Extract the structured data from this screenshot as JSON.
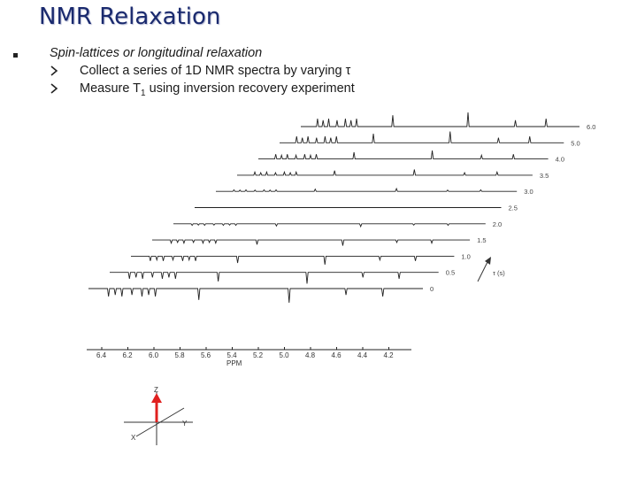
{
  "slide": {
    "title": "NMR Relaxation",
    "bullet": "Spin-lattices or longitudinal relaxation",
    "sub1": "Collect a series of 1D NMR spectra by varying τ",
    "sub2_prefix": "Measure T",
    "sub2_subscript": "1",
    "sub2_suffix": " using inversion recovery experiment"
  },
  "spectra": {
    "tau_values": [
      "6.0",
      "5.0",
      "4.0",
      "3.5",
      "3.0",
      "2.5",
      "2.0",
      "1.5",
      "1.0",
      "0.5",
      "0"
    ],
    "tau_axis_label": "τ (s)",
    "ppm_ticks": [
      "6.4",
      "6.2",
      "6.0",
      "5.8",
      "5.6",
      "5.4",
      "5.2",
      "5.0",
      "4.8",
      "4.6",
      "4.4",
      "4.2"
    ],
    "ppm_label": "PPM"
  },
  "axes3d": {
    "z": "Z",
    "y": "Y",
    "x": "X"
  },
  "colors": {
    "title": "#1a2a6e",
    "arrow": "#e0201f"
  }
}
